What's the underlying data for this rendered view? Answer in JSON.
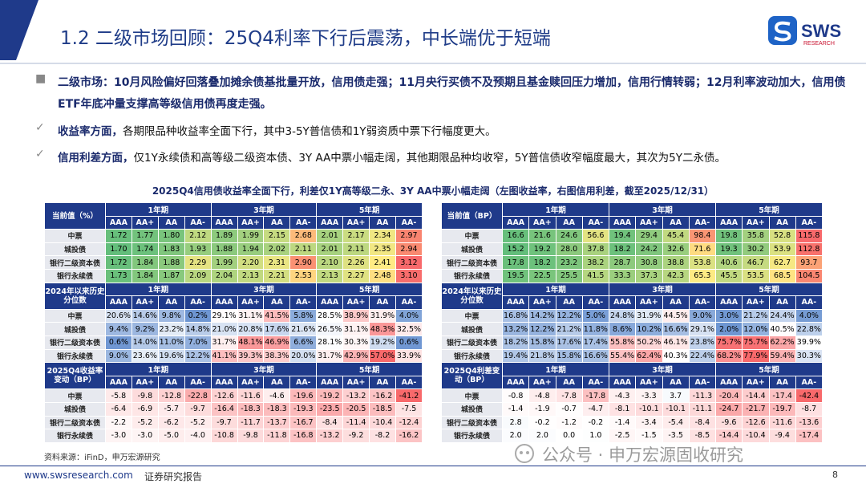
{
  "header": {
    "title": "1.2 二级市场回顾：25Q4利率下行后震荡，中长端优于短端",
    "logo": {
      "main": "SWS",
      "sub": "RESEARCH"
    }
  },
  "bullets": [
    {
      "lead": "二级市场：10月风险偏好回落叠加摊余债基批量开放，信用债走强；11月央行买债不及预期且基金赎回压力增加，信用行情转弱；12月利率波动加大，信用债ETF年底冲量支撑高等级信用债再度走强。",
      "text": ""
    },
    {
      "lead": "收益率方面，",
      "text": "各期限品种收益率全面下行，其中3-5Y普信债和1Y弱资质中票下行幅度更大。"
    },
    {
      "lead": "信用利差方面，",
      "text": "仅1Y永续债和高等级二级资本债、3Y AA中票小幅走阔，其他期限品种均收窄，5Y普信债收窄幅度最大，其次为5Y二永债。"
    }
  ],
  "caption": "2025Q4信用债收益率全面下行，利差仅1Y高等级二永、3Y AA中票小幅走阔（左图收益率，右图信用利差，截至2025/12/31）",
  "groups": [
    "1年期",
    "3年期",
    "5年期"
  ],
  "ratings": [
    "AAA",
    "AA+",
    "AA",
    "AA-"
  ],
  "rows": [
    "中票",
    "城投债",
    "银行二级资本债",
    "银行永续债"
  ],
  "tables": [
    {
      "sections": [
        {
          "label": "当前值（%）",
          "values": [
            [
              "1.72",
              "1.77",
              "1.80",
              "2.12",
              "1.89",
              "1.99",
              "2.15",
              "2.68",
              "2.01",
              "2.17",
              "2.34",
              "2.97"
            ],
            [
              "1.70",
              "1.74",
              "1.83",
              "1.93",
              "1.88",
              "1.94",
              "2.02",
              "2.11",
              "2.01",
              "2.11",
              "2.35",
              "2.94"
            ],
            [
              "1.72",
              "1.84",
              "1.88",
              "2.29",
              "1.99",
              "2.20",
              "2.31",
              "2.90",
              "2.10",
              "2.26",
              "2.41",
              "3.12"
            ],
            [
              "1.73",
              "1.84",
              "1.87",
              "2.09",
              "2.04",
              "2.13",
              "2.21",
              "2.53",
              "2.13",
              "2.27",
              "2.48",
              "3.10"
            ]
          ]
        },
        {
          "label": "2024年以来历史分位数",
          "values": [
            [
              "20.6%",
              "14.6%",
              "9.8%",
              "0.2%",
              "29.1%",
              "31.1%",
              "41.5%",
              "5.8%",
              "28.5%",
              "38.9%",
              "31.9%",
              "4.0%"
            ],
            [
              "9.4%",
              "9.2%",
              "23.2%",
              "14.8%",
              "21.0%",
              "20.8%",
              "17.6%",
              "21.6%",
              "26.5%",
              "31.1%",
              "48.3%",
              "32.5%"
            ],
            [
              "0.6%",
              "14.0%",
              "11.0%",
              "7.0%",
              "31.7%",
              "48.1%",
              "46.9%",
              "6.6%",
              "28.1%",
              "30.3%",
              "19.2%",
              "0.6%"
            ],
            [
              "9.0%",
              "23.6%",
              "19.6%",
              "12.2%",
              "41.1%",
              "39.3%",
              "38.3%",
              "20.0%",
              "31.7%",
              "42.9%",
              "57.0%",
              "33.9%"
            ]
          ]
        },
        {
          "label": "2025Q4收益率变动（BP）",
          "values": [
            [
              "-5.8",
              "-9.8",
              "-12.8",
              "-22.8",
              "-12.6",
              "-11.6",
              "-4.6",
              "-19.6",
              "-19.2",
              "-13.2",
              "-16.2",
              "-41.2"
            ],
            [
              "-6.4",
              "-6.9",
              "-5.7",
              "-9.7",
              "-16.4",
              "-18.3",
              "-18.3",
              "-19.3",
              "-23.5",
              "-20.5",
              "-18.5",
              "-7.5"
            ],
            [
              "-2.2",
              "-5.2",
              "-6.2",
              "-5.2",
              "-9.7",
              "-11.7",
              "-13.7",
              "-16.7",
              "-8.4",
              "-11.4",
              "-10.4",
              "-12.4"
            ],
            [
              "-3.0",
              "-3.0",
              "-5.0",
              "-4.0",
              "-10.8",
              "-9.8",
              "-11.8",
              "-16.8",
              "-13.2",
              "-9.2",
              "-8.2",
              "-16.2"
            ]
          ]
        }
      ]
    },
    {
      "sections": [
        {
          "label": "当前值（BP）",
          "values": [
            [
              "16.6",
              "21.6",
              "24.6",
              "56.6",
              "19.4",
              "29.4",
              "45.4",
              "98.4",
              "19.8",
              "35.8",
              "52.8",
              "115.8"
            ],
            [
              "15.2",
              "19.2",
              "28.0",
              "37.8",
              "18.2",
              "24.2",
              "32.6",
              "71.6",
              "19.3",
              "30.2",
              "53.9",
              "112.8"
            ],
            [
              "17.8",
              "18.2",
              "23.2",
              "38.2",
              "28.7",
              "30.8",
              "38.8",
              "53.8",
              "40.6",
              "46.7",
              "62.7",
              "93.7"
            ],
            [
              "19.5",
              "22.5",
              "25.5",
              "41.5",
              "33.3",
              "37.3",
              "42.3",
              "65.3",
              "45.5",
              "53.5",
              "68.5",
              "104.5"
            ]
          ]
        },
        {
          "label": "2024年以来历史分位数",
          "values": [
            [
              "16.8%",
              "14.2%",
              "12.2%",
              "5.0%",
              "24.8%",
              "31.9%",
              "44.5%",
              "9.0%",
              "3.0%",
              "21.2%",
              "24.4%",
              "4.0%"
            ],
            [
              "13.2%",
              "12.2%",
              "21.2%",
              "11.8%",
              "8.6%",
              "10.2%",
              "16.6%",
              "29.1%",
              "2.0%",
              "12.0%",
              "40.5%",
              "22.8%"
            ],
            [
              "18.2%",
              "15.8%",
              "17.6%",
              "17.4%",
              "55.8%",
              "50.2%",
              "46.1%",
              "23.8%",
              "75.7%",
              "75.7%",
              "62.2%",
              "39.9%"
            ],
            [
              "19.4%",
              "21.8%",
              "15.8%",
              "16.6%",
              "55.4%",
              "62.4%",
              "40.3%",
              "22.4%",
              "68.2%",
              "77.9%",
              "59.4%",
              "30.3%"
            ]
          ]
        },
        {
          "label": "2025Q4利差变动（BP）",
          "values": [
            [
              "-0.8",
              "-4.8",
              "-7.8",
              "-17.8",
              "-4.3",
              "-3.3",
              "3.7",
              "-11.3",
              "-20.4",
              "-14.4",
              "-17.4",
              "-42.4"
            ],
            [
              "-1.4",
              "-1.9",
              "-0.7",
              "-4.7",
              "-8.1",
              "-10.1",
              "-10.1",
              "-11.1",
              "-24.7",
              "-21.7",
              "-19.7",
              "-8.7"
            ],
            [
              "2.8",
              "-0.2",
              "-1.2",
              "-0.2",
              "-1.4",
              "-3.4",
              "-5.4",
              "-8.4",
              "-9.6",
              "-12.6",
              "-11.6",
              "-13.6"
            ],
            [
              "2.0",
              "2.0",
              "0.0",
              "1.0",
              "-2.5",
              "-1.5",
              "-3.5",
              "-8.5",
              "-14.4",
              "-10.4",
              "-9.4",
              "-17.4"
            ]
          ]
        }
      ]
    }
  ],
  "footer": {
    "source": "资料来源：iFinD，申万宏源研究",
    "website": "www.swsresearch.com",
    "label": "证券研究报告",
    "page": "8",
    "watermark": "公众号 · 申万宏源固收研究"
  }
}
